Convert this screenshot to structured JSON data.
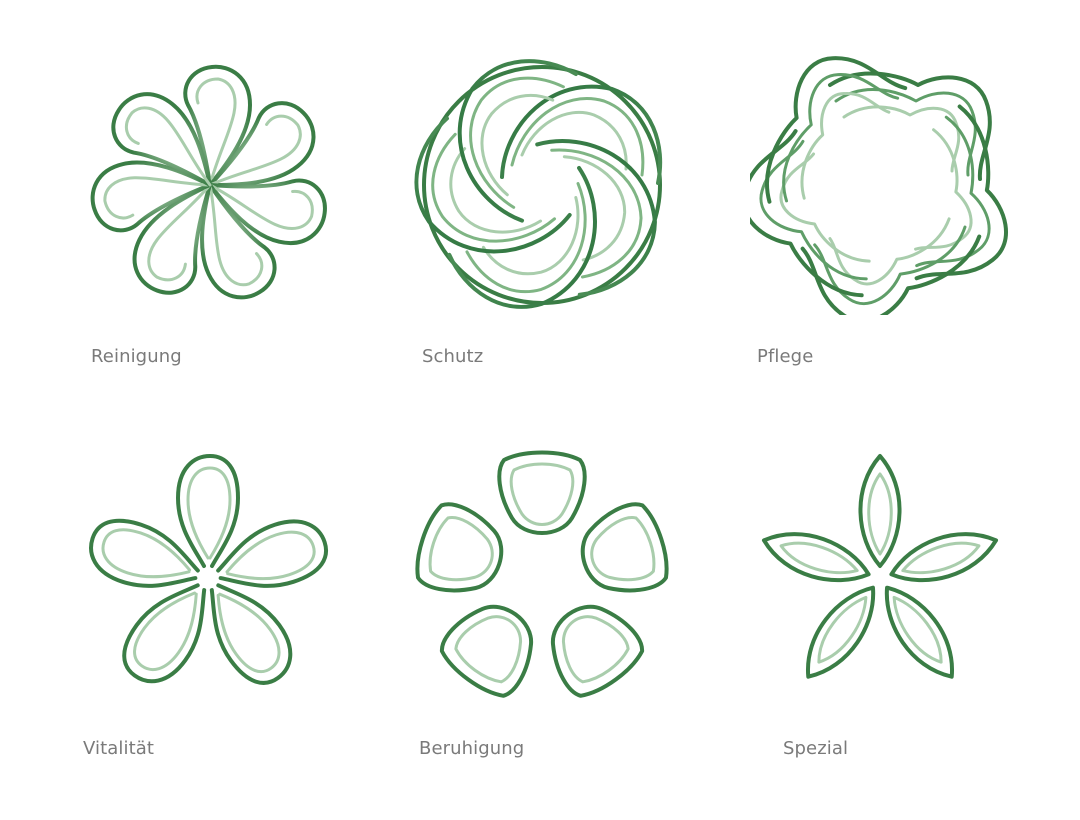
{
  "colors": {
    "outer": "#3a7d45",
    "inner": "#9cc4a0",
    "label": "#7a7a7a",
    "background": "#ffffff"
  },
  "items": [
    {
      "label": "Reinigung",
      "icon": "swirl-droplet-icon"
    },
    {
      "label": "Schutz",
      "icon": "spiral-circle-icon"
    },
    {
      "label": "Pflege",
      "icon": "wavy-star-icon"
    },
    {
      "label": "Vitalität",
      "icon": "star-petal-icon"
    },
    {
      "label": "Beruhigung",
      "icon": "rounded-petal-ring-icon"
    },
    {
      "label": "Spezial",
      "icon": "leaf-star-icon"
    }
  ]
}
